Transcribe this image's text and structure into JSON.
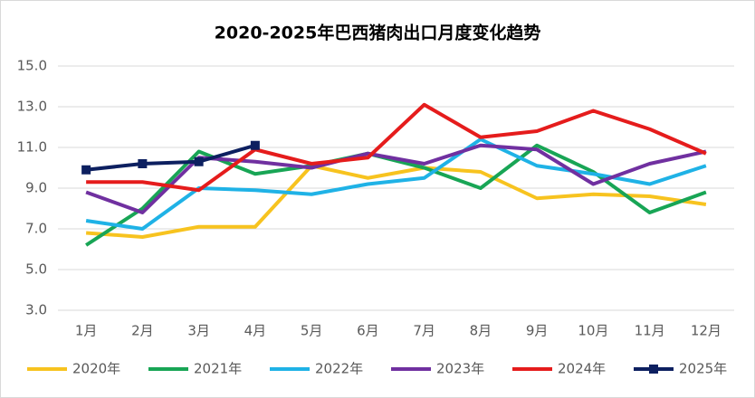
{
  "chart_data": {
    "type": "line",
    "title": "2020-2025年巴西猪肉出口月度变化趋势",
    "categories": [
      "1月",
      "2月",
      "3月",
      "4月",
      "5月",
      "6月",
      "7月",
      "8月",
      "9月",
      "10月",
      "11月",
      "12月"
    ],
    "series": [
      {
        "name": "2020年",
        "color": "#f7c31f",
        "values": [
          6.8,
          6.6,
          7.1,
          7.1,
          10.1,
          9.5,
          10.0,
          9.8,
          8.5,
          8.7,
          8.6,
          8.2
        ]
      },
      {
        "name": "2021年",
        "color": "#18a555",
        "values": [
          6.2,
          8.0,
          10.8,
          9.7,
          10.1,
          10.7,
          10.0,
          9.0,
          11.1,
          9.8,
          7.8,
          8.8
        ]
      },
      {
        "name": "2022年",
        "color": "#1fb2e6",
        "values": [
          7.4,
          7.0,
          9.0,
          8.9,
          8.7,
          9.2,
          9.5,
          11.4,
          10.1,
          9.7,
          9.2,
          10.1
        ]
      },
      {
        "name": "2023年",
        "color": "#7030a0",
        "values": [
          8.8,
          7.8,
          10.5,
          10.3,
          10.0,
          10.7,
          10.2,
          11.1,
          10.9,
          9.2,
          10.2,
          10.8
        ]
      },
      {
        "name": "2024年",
        "color": "#e51c1c",
        "values": [
          9.3,
          9.3,
          8.9,
          10.9,
          10.2,
          10.5,
          13.1,
          11.5,
          11.8,
          12.8,
          11.9,
          10.7
        ]
      },
      {
        "name": "2025年",
        "color": "#0d2060",
        "marker": "square",
        "values": [
          9.9,
          10.2,
          10.3,
          11.1,
          null,
          null,
          null,
          null,
          null,
          null,
          null,
          null
        ]
      }
    ],
    "ylim": [
      3,
      15
    ],
    "yticks": [
      {
        "value": 3,
        "label": "3.0"
      },
      {
        "value": 5,
        "label": "5.0"
      },
      {
        "value": 7,
        "label": "7.0"
      },
      {
        "value": 9,
        "label": "9.0"
      },
      {
        "value": 11,
        "label": "11.0"
      },
      {
        "value": 13,
        "label": "13.0"
      },
      {
        "value": 15,
        "label": "15.0"
      }
    ],
    "grid": true,
    "legend": "bottom"
  }
}
